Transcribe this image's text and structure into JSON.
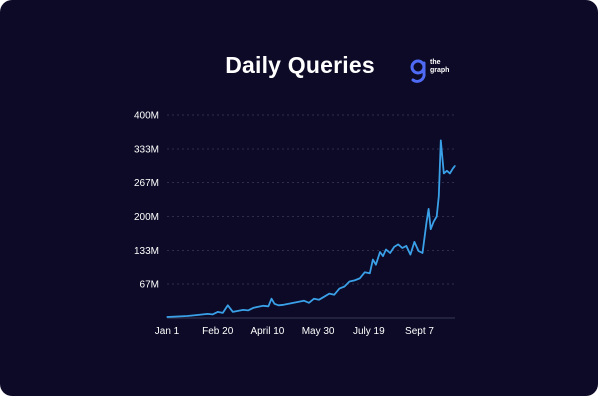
{
  "chart_data": {
    "type": "line",
    "title": "Daily Queries",
    "xlabel": "",
    "ylabel": "",
    "ylim": [
      0,
      400
    ],
    "y_unit": "M",
    "y_ticks": [
      {
        "value": 67,
        "label": "67M"
      },
      {
        "value": 133,
        "label": "133M"
      },
      {
        "value": 200,
        "label": "200M"
      },
      {
        "value": 267,
        "label": "267M"
      },
      {
        "value": 333,
        "label": "333M"
      },
      {
        "value": 400,
        "label": "400M"
      }
    ],
    "x_ticks": [
      {
        "day": 0,
        "label": "Jan 1"
      },
      {
        "day": 50,
        "label": "Feb 20"
      },
      {
        "day": 99,
        "label": "April 10"
      },
      {
        "day": 149,
        "label": "May 30"
      },
      {
        "day": 199,
        "label": "July 19"
      },
      {
        "day": 249,
        "label": "Sept 7"
      }
    ],
    "grid": true,
    "series": [
      {
        "color": "#3aa0e8",
        "x": [
          0,
          10,
          20,
          30,
          40,
          45,
          50,
          55,
          60,
          65,
          70,
          75,
          80,
          85,
          90,
          95,
          100,
          103,
          106,
          110,
          115,
          120,
          125,
          130,
          135,
          140,
          145,
          150,
          155,
          160,
          165,
          170,
          175,
          180,
          185,
          190,
          195,
          200,
          203,
          206,
          210,
          213,
          216,
          220,
          224,
          228,
          232,
          236,
          240,
          244,
          248,
          252,
          256,
          258,
          260,
          263,
          266,
          268,
          270,
          273,
          276,
          279,
          282,
          284
        ],
        "values": [
          2,
          3,
          4,
          6,
          8,
          7,
          12,
          10,
          25,
          12,
          14,
          16,
          15,
          20,
          22,
          24,
          23,
          38,
          28,
          25,
          26,
          28,
          30,
          32,
          34,
          30,
          38,
          36,
          42,
          48,
          46,
          58,
          62,
          72,
          74,
          78,
          90,
          88,
          115,
          105,
          130,
          122,
          135,
          128,
          140,
          145,
          138,
          142,
          125,
          150,
          132,
          128,
          190,
          215,
          175,
          190,
          200,
          240,
          350,
          285,
          290,
          285,
          295,
          300
        ]
      }
    ]
  },
  "logo": {
    "text": "the\ngraph"
  }
}
